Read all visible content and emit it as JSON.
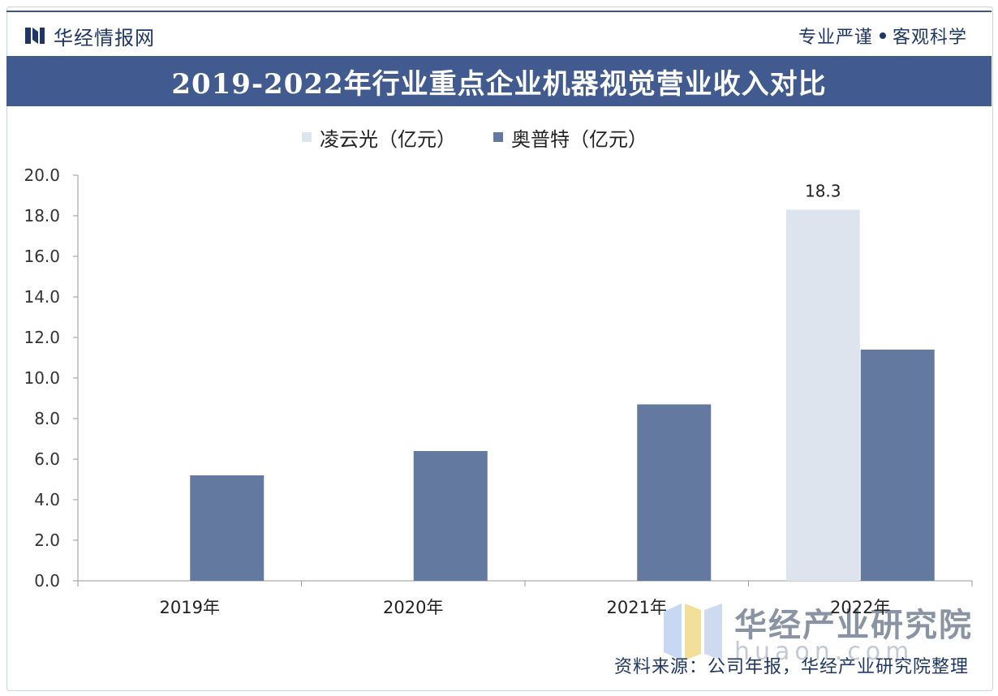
{
  "header": {
    "site_name": "华经情报网",
    "slogan_left": "专业严谨",
    "slogan_right": "客观科学"
  },
  "title": "2019-2022年行业重点企业机器视觉营业收入对比",
  "legend": [
    {
      "label": "凌云光（亿元）",
      "color": "#dde4ee"
    },
    {
      "label": "奥普特（亿元）",
      "color": "#63799f"
    }
  ],
  "chart_data": {
    "type": "bar",
    "categories": [
      "2019年",
      "2020年",
      "2021年",
      "2022年"
    ],
    "series": [
      {
        "name": "凌云光（亿元）",
        "values": [
          null,
          null,
          null,
          18.3
        ],
        "color": "#dde4ee"
      },
      {
        "name": "奥普特（亿元）",
        "values": [
          5.2,
          6.4,
          8.7,
          11.4
        ],
        "color": "#63799f"
      }
    ],
    "data_labels": [
      {
        "series": 0,
        "category": 3,
        "text": "18.3"
      }
    ],
    "ylim": [
      0,
      20
    ],
    "yticks": [
      "0.0",
      "2.0",
      "4.0",
      "6.0",
      "8.0",
      "10.0",
      "12.0",
      "14.0",
      "16.0",
      "18.0",
      "20.0"
    ],
    "xlabel": "",
    "ylabel": "",
    "grid": false,
    "legend_position": "top"
  },
  "watermark": {
    "text": "华经产业研究院",
    "url": "huaon.com"
  },
  "footer": {
    "source": "资料来源：公司年报，华经产业研究院整理"
  }
}
